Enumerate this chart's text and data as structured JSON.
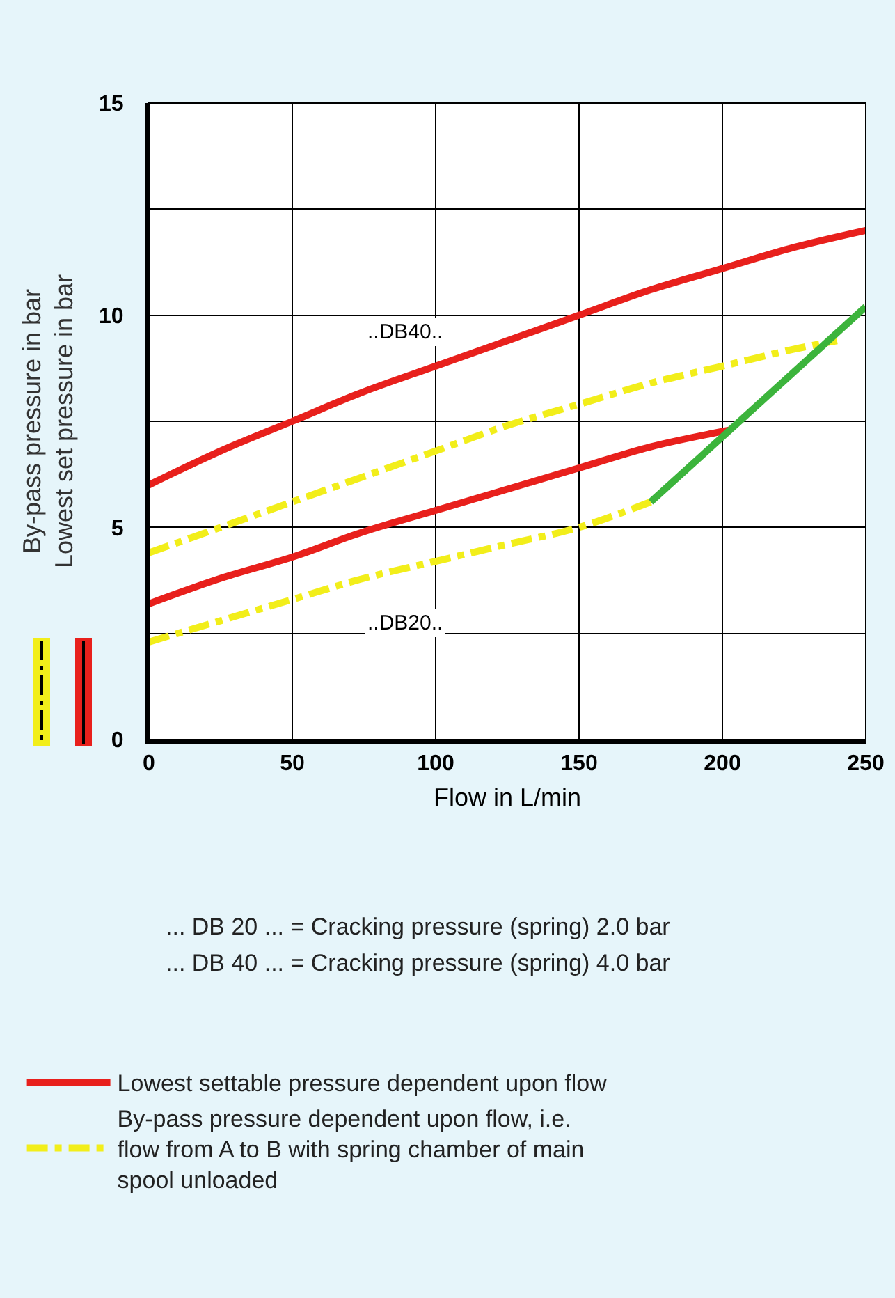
{
  "chart_data": {
    "type": "line",
    "xlabel": "Flow in L/min",
    "ylabel": "By-pass pressure in bar\nLowest set pressure in bar",
    "xlim": [
      0,
      250
    ],
    "xticks": [
      0,
      50,
      100,
      150,
      200,
      250
    ],
    "ylim": [
      0,
      15
    ],
    "yticks": [
      0,
      {
        "value": 2.5,
        "label": null
      },
      5,
      {
        "value": 7.5,
        "label": null
      },
      10,
      {
        "value": 12.5,
        "label": null
      },
      15
    ],
    "grid": true,
    "marker": "none",
    "legend": "bottom",
    "series": [
      {
        "name": "Lowest settable pressure dependent upon flow",
        "color": "#e8201c",
        "line_style": "solid",
        "x": [
          0,
          25,
          50,
          75,
          100,
          125,
          150,
          175,
          200,
          225,
          250
        ],
        "values": [
          6.0,
          6.8,
          7.5,
          8.2,
          8.8,
          9.4,
          10.0,
          10.6,
          11.1,
          11.6,
          12.0
        ]
      },
      {
        "name": "By-pass pressure dependent upon flow, i.e. flow from A to B with spring chamber of main spool unloaded",
        "color": "#f2ee1a",
        "line_style": "dashed",
        "x": [
          0,
          25,
          50,
          75,
          100,
          125,
          150,
          175,
          200,
          225,
          240
        ],
        "values": [
          4.4,
          5.0,
          5.6,
          6.2,
          6.8,
          7.4,
          7.9,
          8.4,
          8.8,
          9.2,
          9.4
        ]
      },
      {
        "color": "#e8201c",
        "line_style": "solid",
        "x": [
          0,
          25,
          50,
          75,
          100,
          125,
          150,
          175,
          203
        ],
        "values": [
          3.2,
          3.8,
          4.3,
          4.9,
          5.4,
          5.9,
          6.4,
          6.9,
          7.3
        ]
      },
      {
        "color": "#f2ee1a",
        "line_style": "dashed",
        "x": [
          0,
          25,
          50,
          75,
          100,
          125,
          150,
          175
        ],
        "values": [
          2.3,
          2.8,
          3.3,
          3.8,
          4.2,
          4.6,
          5.0,
          5.6
        ]
      },
      {
        "color": "#3cb43c",
        "line_style": "solid",
        "x": [
          175,
          250
        ],
        "values": [
          5.6,
          10.2
        ]
      }
    ],
    "annotations": [
      "..DB40..",
      "..DB20..",
      "... DB 20 ... = Cracking pressure (spring) 2.0 bar",
      "... DB 40 ... = Cracking pressure (spring) 4.0 bar"
    ]
  }
}
